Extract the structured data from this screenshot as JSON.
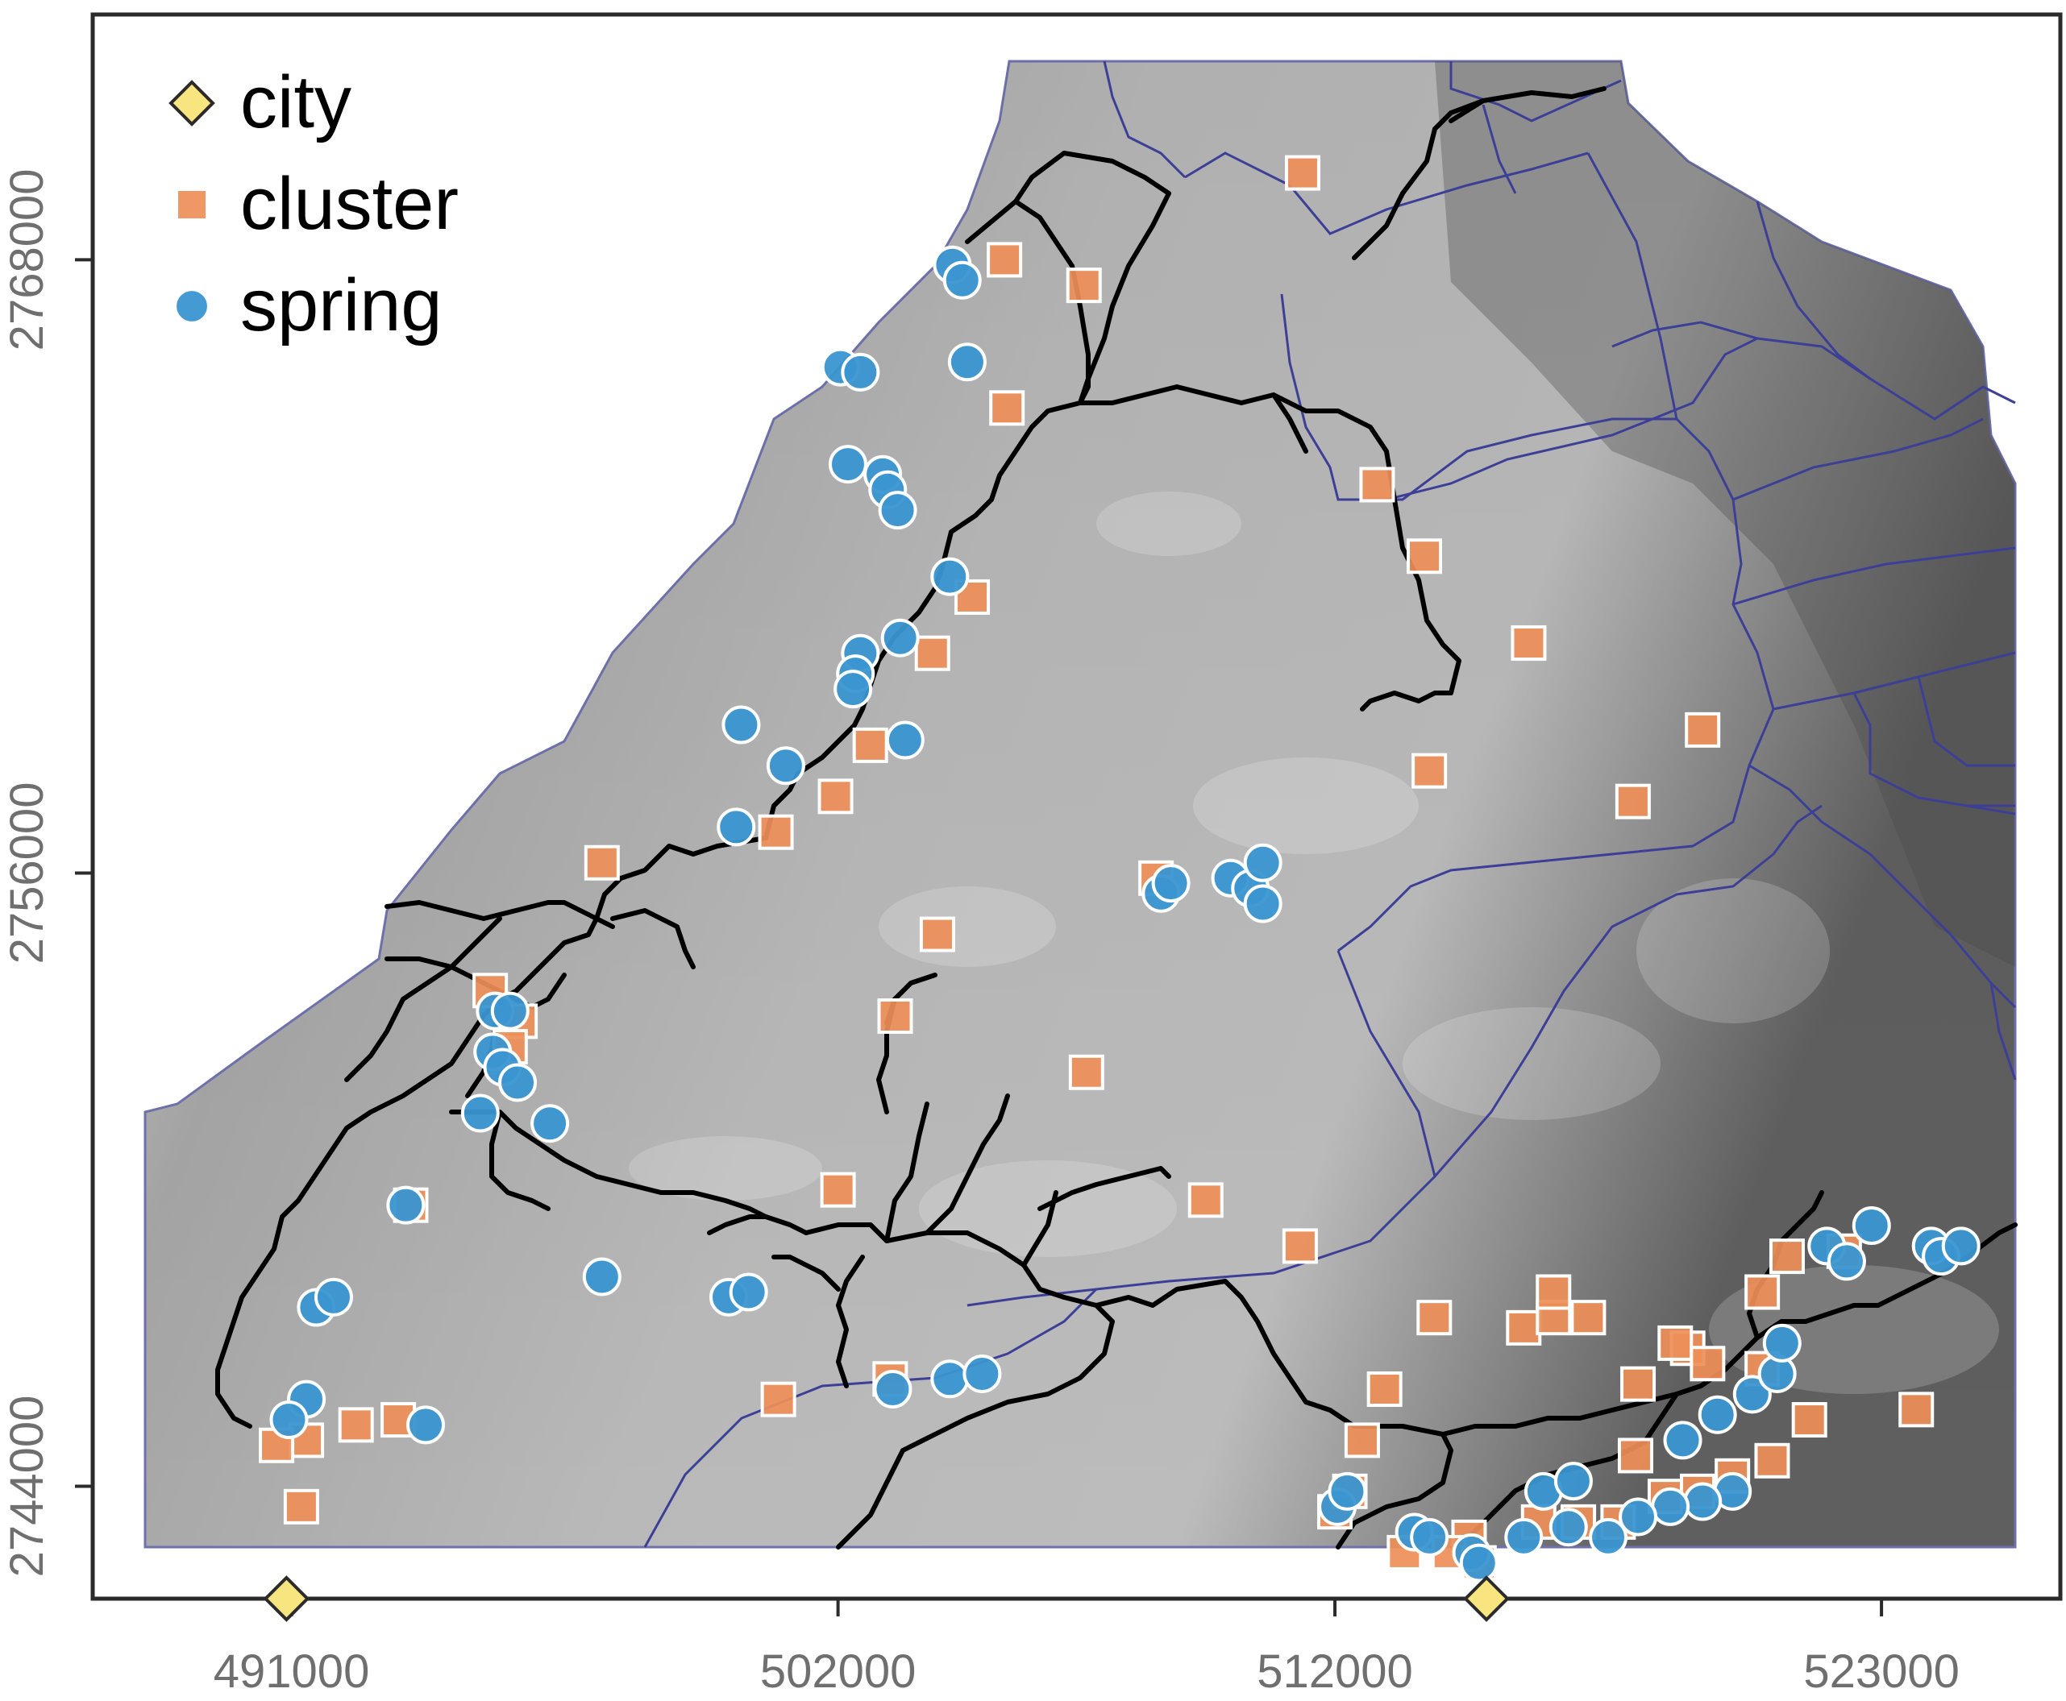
{
  "chart_data": {
    "type": "scatter",
    "map_type": "shaded relief with watershed boundaries and roads",
    "grid": false,
    "legend_placement": "top-left",
    "xlim": [
      487000,
      526600
    ],
    "ylim": [
      2741800,
      2772800
    ],
    "x_ticks": [
      {
        "value": 491000,
        "label": "491000"
      },
      {
        "value": 502000,
        "label": "502000"
      },
      {
        "value": 512000,
        "label": "512000"
      },
      {
        "value": 523000,
        "label": "523000"
      }
    ],
    "y_ticks": [
      {
        "value": 2744000,
        "label": "2744000"
      },
      {
        "value": 2756000,
        "label": "2756000"
      },
      {
        "value": 2768000,
        "label": "2768000"
      }
    ],
    "legend": [
      {
        "key": "city",
        "label": "city",
        "marker": "diamond",
        "color": "#f8e57f"
      },
      {
        "key": "cluster",
        "label": "cluster",
        "marker": "square",
        "color": "#ee8f58"
      },
      {
        "key": "spring",
        "label": "spring",
        "marker": "circle",
        "color": "#3a95d0"
      }
    ],
    "colors": {
      "boundary": "#3d3f97",
      "road": "#000000",
      "relief_light": "#e6e6e6",
      "relief_dark": "#6b6b6b"
    },
    "series": [
      {
        "name": "city",
        "points": [
          [
            490900,
            2741800
          ],
          [
            515050,
            2741800
          ]
        ]
      },
      {
        "name": "cluster",
        "points": [
          [
            511350,
            2769700
          ],
          [
            506950,
            2767500
          ],
          [
            505350,
            2768000
          ],
          [
            505400,
            2765100
          ],
          [
            512850,
            2763600
          ],
          [
            513800,
            2762200
          ],
          [
            504700,
            2761400
          ],
          [
            503900,
            2760300
          ],
          [
            502650,
            2758500
          ],
          [
            501950,
            2757500
          ],
          [
            500750,
            2756800
          ],
          [
            513900,
            2758000
          ],
          [
            515900,
            2760500
          ],
          [
            519400,
            2758800
          ],
          [
            518000,
            2757400
          ],
          [
            508400,
            2755900
          ],
          [
            497250,
            2756200
          ],
          [
            495000,
            2753700
          ],
          [
            495600,
            2753100
          ],
          [
            495400,
            2752600
          ],
          [
            493400,
            2749500
          ],
          [
            504000,
            2754800
          ],
          [
            503150,
            2753200
          ],
          [
            507000,
            2752100
          ],
          [
            509400,
            2749600
          ],
          [
            511300,
            2748700
          ],
          [
            502000,
            2749800
          ],
          [
            503050,
            2746100
          ],
          [
            500800,
            2745700
          ],
          [
            492300,
            2745200
          ],
          [
            493150,
            2745300
          ],
          [
            491300,
            2744900
          ],
          [
            490700,
            2744800
          ],
          [
            491200,
            2743600
          ],
          [
            513000,
            2745900
          ],
          [
            512000,
            2743500
          ],
          [
            512550,
            2744900
          ],
          [
            512300,
            2743900
          ],
          [
            514000,
            2747300
          ],
          [
            515800,
            2747100
          ],
          [
            516400,
            2747300
          ],
          [
            516400,
            2747800
          ],
          [
            517100,
            2747300
          ],
          [
            519100,
            2746700
          ],
          [
            518100,
            2746000
          ],
          [
            518050,
            2744600
          ],
          [
            518850,
            2746800
          ],
          [
            519500,
            2746400
          ],
          [
            520600,
            2747800
          ],
          [
            521100,
            2748500
          ],
          [
            522250,
            2748600
          ],
          [
            520600,
            2746300
          ],
          [
            521550,
            2745300
          ],
          [
            523700,
            2745500
          ],
          [
            520800,
            2744500
          ],
          [
            520000,
            2744200
          ],
          [
            519300,
            2743900
          ],
          [
            518650,
            2743800
          ],
          [
            517700,
            2743300
          ],
          [
            516900,
            2743300
          ],
          [
            516100,
            2743300
          ],
          [
            514700,
            2743000
          ],
          [
            514300,
            2742700
          ],
          [
            513400,
            2742700
          ],
          [
            514900,
            2742500
          ]
        ]
      },
      {
        "name": "spring",
        "points": [
          [
            504300,
            2767900
          ],
          [
            504500,
            2767600
          ],
          [
            504600,
            2766000
          ],
          [
            502050,
            2765900
          ],
          [
            502450,
            2765800
          ],
          [
            502200,
            2764000
          ],
          [
            502900,
            2763800
          ],
          [
            503000,
            2763500
          ],
          [
            503200,
            2763100
          ],
          [
            504250,
            2761800
          ],
          [
            503250,
            2760600
          ],
          [
            502450,
            2760300
          ],
          [
            502350,
            2759900
          ],
          [
            502300,
            2759600
          ],
          [
            503350,
            2758600
          ],
          [
            500050,
            2758900
          ],
          [
            500950,
            2758100
          ],
          [
            499950,
            2756900
          ],
          [
            508500,
            2755600
          ],
          [
            508700,
            2755800
          ],
          [
            509900,
            2755900
          ],
          [
            510300,
            2755700
          ],
          [
            510550,
            2755400
          ],
          [
            510550,
            2756200
          ],
          [
            495100,
            2753300
          ],
          [
            495400,
            2753300
          ],
          [
            495050,
            2752500
          ],
          [
            495250,
            2752200
          ],
          [
            495550,
            2751900
          ],
          [
            494800,
            2751300
          ],
          [
            496200,
            2751100
          ],
          [
            493300,
            2749500
          ],
          [
            497250,
            2748100
          ],
          [
            499800,
            2747700
          ],
          [
            500200,
            2747800
          ],
          [
            491500,
            2747500
          ],
          [
            491850,
            2747700
          ],
          [
            491300,
            2745700
          ],
          [
            490950,
            2745300
          ],
          [
            493700,
            2745200
          ],
          [
            503100,
            2745900
          ],
          [
            504250,
            2746100
          ],
          [
            504900,
            2746200
          ],
          [
            512050,
            2743600
          ],
          [
            512250,
            2743900
          ],
          [
            513600,
            2743100
          ],
          [
            513900,
            2743000
          ],
          [
            514750,
            2742700
          ],
          [
            514900,
            2742500
          ],
          [
            516200,
            2743900
          ],
          [
            516800,
            2744100
          ],
          [
            519000,
            2744900
          ],
          [
            519700,
            2745400
          ],
          [
            520400,
            2745800
          ],
          [
            520900,
            2746200
          ],
          [
            521000,
            2746800
          ],
          [
            521900,
            2748700
          ],
          [
            522300,
            2748400
          ],
          [
            522800,
            2749100
          ],
          [
            524000,
            2748700
          ],
          [
            524200,
            2748500
          ],
          [
            524600,
            2748700
          ],
          [
            520000,
            2743900
          ],
          [
            519400,
            2743700
          ],
          [
            518750,
            2743600
          ],
          [
            518100,
            2743400
          ],
          [
            517500,
            2743000
          ],
          [
            516700,
            2743200
          ],
          [
            515800,
            2743000
          ]
        ]
      }
    ]
  }
}
